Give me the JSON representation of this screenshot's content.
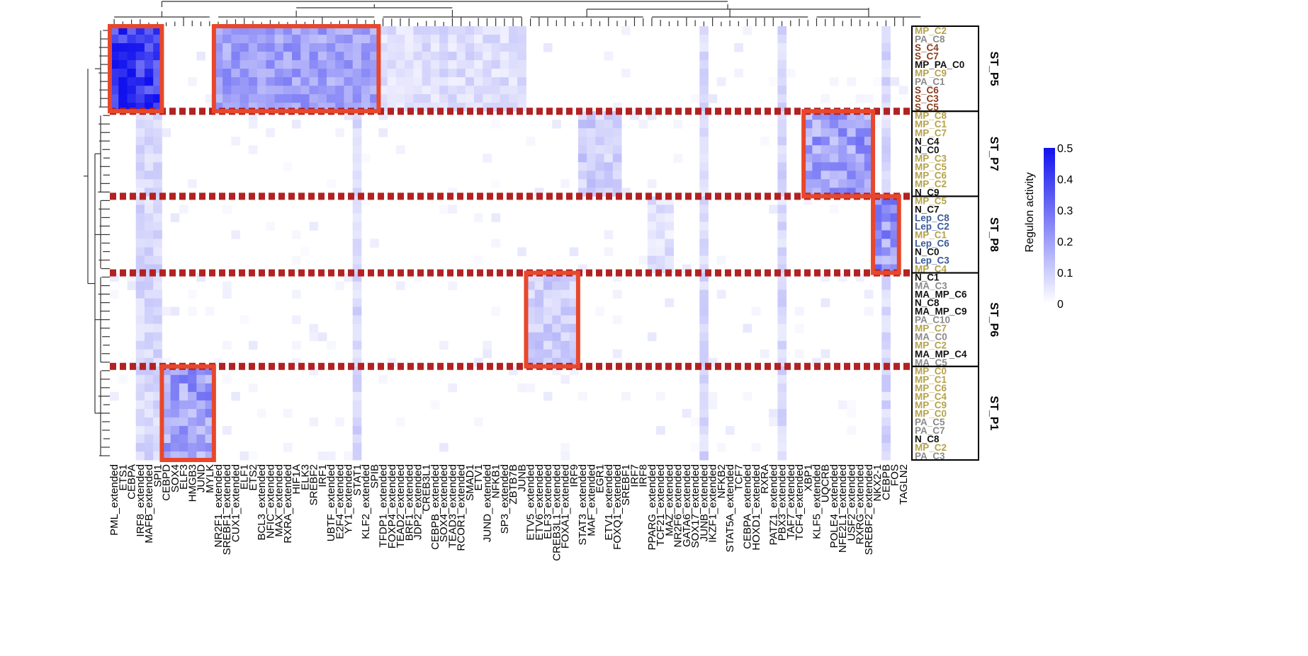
{
  "chart_data": {
    "type": "heatmap",
    "title": "",
    "legend_title": "Regulon activity",
    "legend_ticks": [
      0.5,
      0.4,
      0.3,
      0.2,
      0.1,
      0
    ],
    "color_low": "#ffffff",
    "color_high": "#1111ee",
    "highlight_color": "#e8472b",
    "divider_color": "#b22222",
    "columns": [
      "PML_extended",
      "ETS1",
      "CEBPA",
      "IRF8_extended",
      "MAFB_extended",
      "SPI1",
      "CEBPD",
      "SOX4",
      "ELF3",
      "HMGB3",
      "JUND",
      "MYLK",
      "NR2F1_extended",
      "SREBF1_extended",
      "CUX1_extended",
      "ELF1",
      "ETS2",
      "BCL3_extended",
      "NFIC_extended",
      "MAX_extended",
      "RXRA_extended",
      "HIF1A",
      "ELK3",
      "SREBF2",
      "IRF1",
      "UBTF_extended",
      "E2F4_extended",
      "YY1_extended",
      "STAT1",
      "KLF2_extended",
      "SPIB",
      "TFDP1_extended",
      "FOXP4_extended",
      "TEAD2_extended",
      "BRF1_extended",
      "JDP2_extended",
      "CREB3L1",
      "CEBPB_extended",
      "SOX4_extended",
      "TEAD3_extended",
      "RCOR1_extended",
      "SMAD1",
      "ETV1",
      "JUND_extended",
      "NFKB1",
      "SP3_extended",
      "ZBTB7B",
      "JUNB",
      "ETV5_extended",
      "ETV6_extended",
      "ELF3_extended",
      "CREB3L1_extended",
      "FOXA1_extended",
      "IRF9",
      "STAT3_extended",
      "MAF_extended",
      "EGR1",
      "ETV1_extended",
      "FOXQ1_extended",
      "SREBF1",
      "IRF7",
      "IRF8",
      "PPARG_extended",
      "TCF21_extended",
      "MAZ_extended",
      "NR2F6_extended",
      "GATA6_extended",
      "SOX17_extended",
      "JUNB_extended",
      "IKZF1_extended",
      "NFKB2",
      "STAT5A_extended",
      "TCF7",
      "CEBPA_extended",
      "HOXD1_extended",
      "RXRA",
      "PATZ1_extended",
      "PBX3_extended",
      "TAF7_extended",
      "TCF4_extended",
      "XBP1",
      "KLF5_extended",
      "UQCRB",
      "POLE4_extended",
      "NFE2L1_extended",
      "USF2_extended",
      "RXRG_extended",
      "SREBF2_extended",
      "NKX2-1",
      "CEBPB",
      "FOS",
      "TAGLN2"
    ],
    "groups": [
      {
        "name": "ST_P5",
        "rows": [
          {
            "label": "MP_C2",
            "kind": "MP"
          },
          {
            "label": "PA_C8",
            "kind": "PA"
          },
          {
            "label": "S_C4",
            "kind": "S"
          },
          {
            "label": "S_C7",
            "kind": "S"
          },
          {
            "label": "MP_PA_C0",
            "kind": "N"
          },
          {
            "label": "MP_C9",
            "kind": "MP"
          },
          {
            "label": "PA_C1",
            "kind": "PA"
          },
          {
            "label": "S_C6",
            "kind": "S"
          },
          {
            "label": "S_C3",
            "kind": "S"
          },
          {
            "label": "S_C5",
            "kind": "S"
          }
        ]
      },
      {
        "name": "ST_P7",
        "rows": [
          {
            "label": "MP_C8",
            "kind": "MP"
          },
          {
            "label": "MP_C1",
            "kind": "MP"
          },
          {
            "label": "MP_C7",
            "kind": "MP"
          },
          {
            "label": "N_C4",
            "kind": "N"
          },
          {
            "label": "N_C0",
            "kind": "N"
          },
          {
            "label": "MP_C3",
            "kind": "MP"
          },
          {
            "label": "MP_C5",
            "kind": "MP"
          },
          {
            "label": "MP_C6",
            "kind": "MP"
          },
          {
            "label": "MP_C2",
            "kind": "MP"
          },
          {
            "label": "N_C9",
            "kind": "N"
          }
        ]
      },
      {
        "name": "ST_P8",
        "rows": [
          {
            "label": "MP_C5",
            "kind": "MP"
          },
          {
            "label": "N_C7",
            "kind": "N"
          },
          {
            "label": "Lep_C8",
            "kind": "Lep"
          },
          {
            "label": "Lep_C2",
            "kind": "Lep"
          },
          {
            "label": "MP_C1",
            "kind": "MP"
          },
          {
            "label": "Lep_C6",
            "kind": "Lep"
          },
          {
            "label": "N_C0",
            "kind": "N"
          },
          {
            "label": "Lep_C3",
            "kind": "Lep"
          },
          {
            "label": "MP_C4",
            "kind": "MP"
          }
        ]
      },
      {
        "name": "ST_P6",
        "rows": [
          {
            "label": "N_C1",
            "kind": "N"
          },
          {
            "label": "MA_C3",
            "kind": "MA"
          },
          {
            "label": "MA_MP_C6",
            "kind": "N"
          },
          {
            "label": "N_C8",
            "kind": "N"
          },
          {
            "label": "MA_MP_C9",
            "kind": "N"
          },
          {
            "label": "PA_C10",
            "kind": "PA"
          },
          {
            "label": "MP_C7",
            "kind": "MP"
          },
          {
            "label": "MA_C0",
            "kind": "MA"
          },
          {
            "label": "MP_C2",
            "kind": "MP"
          },
          {
            "label": "MA_MP_C4",
            "kind": "N"
          },
          {
            "label": "MA_C5",
            "kind": "MA"
          }
        ]
      },
      {
        "name": "ST_P1",
        "rows": [
          {
            "label": "MP_C0",
            "kind": "MP"
          },
          {
            "label": "MP_C1",
            "kind": "MP"
          },
          {
            "label": "MP_C6",
            "kind": "MP"
          },
          {
            "label": "MP_C4",
            "kind": "MP"
          },
          {
            "label": "MP_C9",
            "kind": "MP"
          },
          {
            "label": "MP_C0",
            "kind": "MP"
          },
          {
            "label": "PA_C5",
            "kind": "PA"
          },
          {
            "label": "PA_C7",
            "kind": "PA"
          },
          {
            "label": "N_C8",
            "kind": "N"
          },
          {
            "label": "MP_C2",
            "kind": "MP"
          },
          {
            "label": "PA_C3",
            "kind": "PA"
          }
        ]
      }
    ],
    "label_colors": {
      "MP": "#b5a24a",
      "PA": "#8a8a8a",
      "S": "#8b3a1a",
      "Lep": "#3b5a9a",
      "N": "#111111",
      "MA": "#8a8a8a"
    }
  }
}
